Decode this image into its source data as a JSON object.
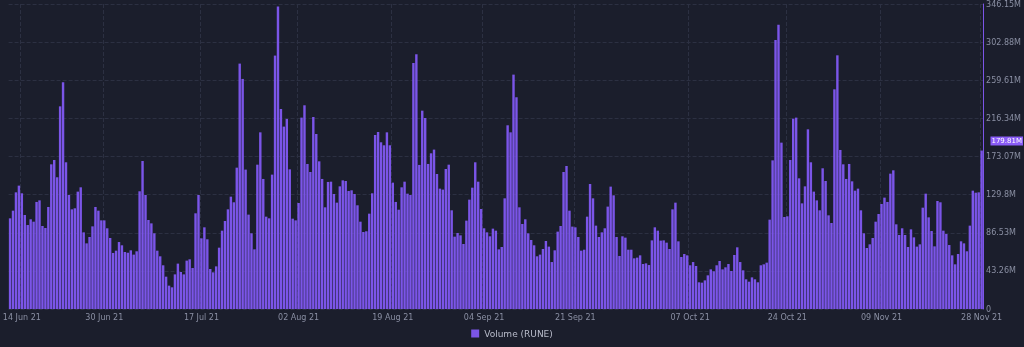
{
  "chart_data": {
    "type": "bar",
    "categories": [
      null,
      null,
      null,
      null,
      "14 Jun 21",
      null,
      null,
      null,
      null,
      null,
      null,
      null,
      null,
      null,
      null,
      null,
      null,
      null,
      null,
      null,
      null,
      null,
      null,
      null,
      null,
      null,
      null,
      null,
      null,
      null,
      null,
      null,
      "30 Jun 21",
      null,
      null,
      null,
      null,
      null,
      null,
      null,
      null,
      null,
      null,
      null,
      null,
      null,
      null,
      null,
      null,
      null,
      null,
      null,
      null,
      null,
      null,
      null,
      null,
      null,
      null,
      null,
      null,
      null,
      null,
      null,
      null,
      "17 Jul 21",
      null,
      null,
      null,
      null,
      null,
      null,
      null,
      null,
      null,
      null,
      null,
      null,
      null,
      null,
      null,
      null,
      null,
      null,
      null,
      null,
      null,
      null,
      null,
      null,
      null,
      null,
      null,
      null,
      null,
      null,
      null,
      null,
      "02 Aug 21",
      null,
      null,
      null,
      null,
      null,
      null,
      null,
      null,
      null,
      null,
      null,
      null,
      null,
      null,
      null,
      null,
      null,
      null,
      null,
      null,
      null,
      null,
      null,
      null,
      null,
      null,
      null,
      null,
      null,
      null,
      null,
      "19 Aug 21",
      null,
      null,
      null,
      null,
      null,
      null,
      null,
      null,
      null,
      null,
      null,
      null,
      null,
      null,
      null,
      null,
      null,
      null,
      null,
      null,
      null,
      null,
      null,
      null,
      null,
      null,
      null,
      null,
      null,
      null,
      "04 Sep 21",
      null,
      null,
      null,
      null,
      null,
      null,
      null,
      null,
      null,
      null,
      null,
      null,
      null,
      null,
      null,
      null,
      null,
      null,
      null,
      null,
      null,
      null,
      null,
      null,
      null,
      null,
      null,
      null,
      null,
      null,
      "21 Sep 21",
      null,
      null,
      null,
      null,
      null,
      null,
      null,
      null,
      null,
      null,
      null,
      null,
      null,
      null,
      null,
      null,
      null,
      null,
      null,
      null,
      null,
      null,
      null,
      null,
      null,
      null,
      null,
      null,
      null,
      null,
      null,
      null,
      null,
      null,
      null,
      null,
      null,
      null,
      "07 Oct 21",
      null,
      null,
      null,
      null,
      null,
      null,
      null,
      null,
      null,
      null,
      null,
      null,
      null,
      null,
      null,
      null,
      null,
      null,
      null,
      null,
      null,
      null,
      null,
      null,
      null,
      null,
      null,
      null,
      null,
      null,
      null,
      null,
      "24 Oct 21",
      null,
      null,
      null,
      null,
      null,
      null,
      null,
      null,
      null,
      null,
      null,
      null,
      null,
      null,
      null,
      null,
      null,
      null,
      null,
      null,
      null,
      null,
      null,
      null,
      null,
      null,
      null,
      null,
      null,
      null,
      null,
      "09 Nov 21",
      null,
      null,
      null,
      null,
      null,
      null,
      null,
      null,
      null,
      null,
      null,
      null,
      null,
      null,
      null,
      null,
      null,
      null,
      null,
      null,
      null,
      null,
      null,
      null,
      null,
      null,
      null,
      null,
      null,
      null,
      null,
      null,
      null,
      "28 Nov 21"
    ],
    "series": [
      {
        "name": "Volume (RUNE)",
        "color": "#7b55e8",
        "values": [
          102.9,
          111.6,
          132.4,
          140.0,
          131.3,
          106.7,
          95.3,
          101.8,
          99.1,
          121.5,
          123.3,
          94.2,
          91.9,
          115.8,
          164.2,
          169.1,
          149.5,
          230.0,
          257.3,
          166.5,
          129.4,
          113.1,
          114.3,
          133.2,
          138.1,
          87.0,
          74.5,
          81.7,
          93.8,
          115.8,
          111.6,
          100.6,
          100.6,
          91.6,
          80.6,
          63.6,
          66.2,
          76.0,
          72.3,
          64.7,
          63.9,
          66.6,
          61.7,
          65.5,
          133.6,
          168.0,
          129.4,
          101.0,
          97.2,
          85.9,
          66.2,
          59.8,
          49.6,
          36.7,
          26.5,
          24.6,
          39.3,
          51.5,
          42.0,
          39.3,
          54.9,
          56.4,
          46.5,
          108.6,
          129.4,
          80.2,
          92.7,
          79.1,
          45.4,
          41.6,
          48.4,
          69.6,
          88.9,
          99.9,
          113.1,
          127.5,
          121.1,
          160.4,
          278.5,
          261.1,
          158.2,
          107.1,
          85.9,
          67.7,
          163.8,
          200.5,
          147.6,
          104.8,
          102.9,
          152.5,
          287.6,
          343.2,
          227.0,
          207.0,
          215.7,
          158.5,
          102.5,
          100.6,
          120.3,
          217.2,
          231.2,
          164.6,
          155.5,
          217.9,
          198.6,
          167.6,
          147.6,
          115.4,
          144.2,
          144.5,
          130.5,
          120.7,
          139.2,
          146.0,
          145.3,
          133.9,
          134.7,
          130.5,
          117.7,
          99.1,
          87.4,
          88.2,
          108.2,
          131.3,
          197.5,
          200.9,
          189.2,
          185.8,
          200.5,
          185.8,
          143.4,
          121.5,
          112.7,
          138.1,
          144.5,
          130.9,
          129.4,
          279.2,
          289.1,
          163.5,
          225.1,
          216.8,
          164.6,
          176.7,
          180.9,
          153.2,
          136.6,
          135.5,
          158.9,
          163.8,
          112.0,
          82.1,
          86.3,
          83.6,
          73.8,
          100.3,
          124.1,
          137.7,
          166.5,
          144.5,
          113.5,
          91.6,
          87.0,
          82.5,
          91.2,
          88.9,
          67.7,
          70.4,
          125.6,
          208.5,
          200.5,
          266.0,
          240.3,
          115.4,
          96.5,
          101.8,
          85.9,
          78.3,
          72.3,
          59.8,
          61.7,
          68.1,
          77.2,
          70.8,
          53.3,
          66.6,
          87.8,
          94.2,
          155.5,
          162.3,
          111.6,
          93.5,
          92.7,
          81.7,
          66.2,
          67.3,
          104.8,
          141.9,
          125.6,
          94.6,
          81.7,
          87.0,
          91.6,
          116.2,
          138.9,
          129.0,
          81.7,
          60.2,
          82.5,
          81.0,
          67.3,
          67.3,
          57.5,
          58.3,
          60.9,
          51.1,
          51.8,
          49.9,
          77.9,
          92.7,
          88.9,
          77.6,
          77.9,
          75.3,
          68.1,
          113.1,
          120.7,
          76.8,
          59.0,
          62.4,
          60.9,
          49.6,
          53.3,
          48.8,
          30.3,
          29.9,
          32.5,
          38.2,
          45.0,
          42.8,
          49.6,
          54.5,
          45.0,
          47.3,
          51.1,
          43.1,
          61.3,
          70.0,
          53.3,
          43.9,
          33.7,
          31.0,
          35.9,
          33.7,
          30.3,
          49.6,
          50.7,
          52.6,
          101.4,
          168.7,
          305.3,
          322.7,
          188.8,
          104.4,
          105.2,
          169.1,
          216.0,
          217.2,
          148.3,
          119.9,
          139.2,
          203.9,
          166.5,
          133.2,
          123.3,
          112.0,
          159.7,
          145.3,
          106.3,
          97.6,
          249.3,
          287.9,
          180.5,
          164.2,
          147.6,
          164.6,
          144.9,
          134.3,
          136.6,
          112.0,
          85.9,
          69.2,
          73.4,
          80.6,
          99.1,
          107.8,
          119.2,
          126.4,
          121.5,
          153.6,
          157.4,
          96.1,
          84.0,
          91.6,
          84.0,
          70.4,
          90.4,
          81.3,
          70.8,
          73.4,
          115.0,
          130.9,
          104.0,
          88.5,
          71.1,
          122.6,
          121.1,
          88.9,
          85.1,
          72.6,
          60.9,
          50.7,
          62.4,
          76.8,
          74.5,
          65.5,
          94.6,
          134.3,
          132.0,
          132.4,
          179.81
        ]
      }
    ],
    "ylim": [
      0,
      346.15
    ],
    "yticks": [
      0,
      {
        "value": 43.26,
        "label": "43.26M"
      },
      {
        "value": 86.53,
        "label": "86.53M"
      },
      {
        "value": 129.8,
        "label": "129.8M"
      },
      {
        "value": 173.07,
        "label": "173.07M"
      },
      {
        "value": 216.34,
        "label": "216.34M"
      },
      {
        "value": 259.61,
        "label": "259.61M"
      },
      {
        "value": 302.88,
        "label": "302.88M"
      },
      {
        "value": 346.15,
        "label": "346.15M"
      }
    ],
    "annotations": [
      "179.81M"
    ],
    "grid": true,
    "legend": "bottom"
  }
}
